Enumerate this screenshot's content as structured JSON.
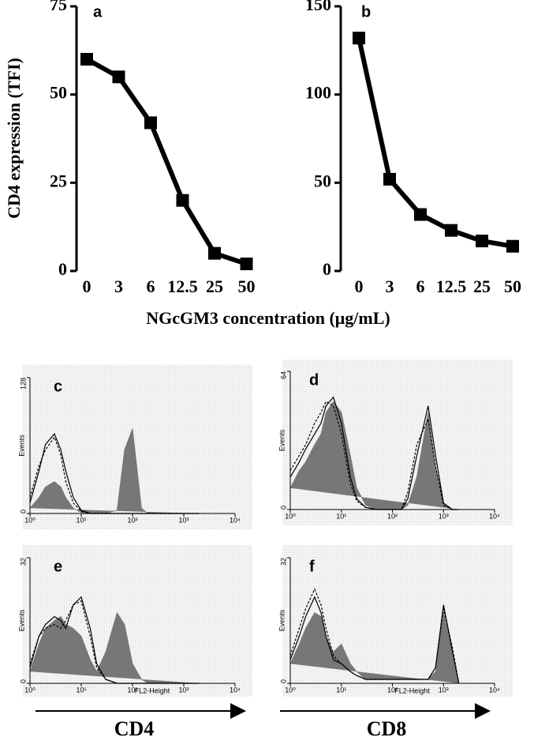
{
  "figure": {
    "y_label": "CD4 expression (TFI)",
    "x_label": "NGcGM3 concentration (μg/mL)",
    "arrow_labels": [
      "CD4",
      "CD8"
    ]
  },
  "chart_data": [
    {
      "type": "line",
      "label": "a",
      "categories": [
        "0",
        "3",
        "6",
        "12.5",
        "25",
        "50"
      ],
      "values": [
        60,
        55,
        42,
        20,
        5,
        2
      ],
      "color": "#000000",
      "ylim": [
        0,
        75
      ],
      "yticks": [
        0,
        25,
        50,
        75
      ]
    },
    {
      "type": "line",
      "label": "b",
      "categories": [
        "0",
        "3",
        "6",
        "12.5",
        "25",
        "50"
      ],
      "values": [
        132,
        52,
        32,
        23,
        17,
        14
      ],
      "color": "#000000",
      "ylim": [
        0,
        150
      ],
      "yticks": [
        0,
        50,
        100,
        150
      ]
    },
    {
      "type": "area",
      "label": "c",
      "y_label": "Events",
      "xscale": "log",
      "xlim": [
        1,
        10000
      ],
      "ylim": [
        0,
        128
      ],
      "xticks": [
        {
          "value": 1,
          "label": "10⁰"
        },
        {
          "value": 10,
          "label": "10¹"
        },
        {
          "value": 100,
          "label": "10²"
        },
        {
          "value": 1000,
          "label": "10³"
        },
        {
          "value": 10000,
          "label": "10⁴"
        }
      ],
      "yticks": [
        0,
        128
      ],
      "x": [
        1,
        1.5,
        2,
        3,
        4,
        5,
        7,
        10,
        15,
        20,
        30,
        50,
        70,
        100,
        150,
        200,
        300,
        500,
        700,
        1000,
        1500,
        2000
      ],
      "series": [
        {
          "style": "filled",
          "color": "#777777",
          "values": [
            5,
            15,
            25,
            30,
            25,
            15,
            5,
            1,
            0,
            0,
            0,
            3,
            60,
            80,
            5,
            0,
            0,
            0,
            0,
            0,
            0,
            0
          ]
        },
        {
          "style": "solid",
          "color": "#000000",
          "values": [
            10,
            40,
            65,
            75,
            60,
            40,
            15,
            3,
            0,
            0,
            0,
            0,
            0,
            0,
            0,
            0,
            0,
            0,
            0,
            0,
            0,
            0
          ]
        },
        {
          "style": "dashed",
          "color": "#000000",
          "values": [
            15,
            45,
            60,
            72,
            55,
            30,
            10,
            2,
            0,
            0,
            0,
            0,
            0,
            0,
            0,
            0,
            0,
            0,
            0,
            0,
            0,
            0
          ]
        }
      ]
    },
    {
      "type": "area",
      "label": "d",
      "y_label": "Events",
      "xscale": "log",
      "xlim": [
        1,
        10000
      ],
      "ylim": [
        0,
        64
      ],
      "xticks": [
        {
          "value": 1,
          "label": "10⁰"
        },
        {
          "value": 10,
          "label": "10¹"
        },
        {
          "value": 100,
          "label": "10²"
        },
        {
          "value": 1000,
          "label": "10³"
        },
        {
          "value": 10000,
          "label": "10⁴"
        }
      ],
      "yticks": [
        0,
        64
      ],
      "x": [
        1,
        1.5,
        2,
        3,
        4,
        5,
        7,
        10,
        15,
        20,
        30,
        50,
        70,
        100,
        150,
        200,
        300,
        500,
        700,
        1000,
        1500,
        2000
      ],
      "series": [
        {
          "style": "filled",
          "color": "#777777",
          "values": [
            10,
            18,
            22,
            30,
            35,
            45,
            50,
            45,
            25,
            10,
            2,
            0,
            0,
            0,
            0,
            2,
            15,
            45,
            20,
            3,
            0,
            0
          ]
        },
        {
          "style": "solid",
          "color": "#000000",
          "values": [
            15,
            22,
            28,
            35,
            40,
            48,
            52,
            40,
            15,
            5,
            1,
            0,
            0,
            0,
            0,
            5,
            25,
            48,
            25,
            3,
            0,
            0
          ]
        },
        {
          "style": "dashed",
          "color": "#000000",
          "values": [
            18,
            25,
            30,
            40,
            45,
            50,
            48,
            35,
            12,
            4,
            1,
            0,
            0,
            0,
            0,
            8,
            30,
            42,
            20,
            2,
            0,
            0
          ]
        }
      ]
    },
    {
      "type": "area",
      "label": "e",
      "y_label": "Events",
      "x_label": "FL2-Height",
      "xscale": "log",
      "xlim": [
        1,
        10000
      ],
      "ylim": [
        0,
        32
      ],
      "xticks": [
        {
          "value": 1,
          "label": "10⁰"
        },
        {
          "value": 10,
          "label": "10¹"
        },
        {
          "value": 100,
          "label": "10²"
        },
        {
          "value": 1000,
          "label": "10³"
        },
        {
          "value": 10000,
          "label": "10⁴"
        }
      ],
      "yticks": [
        0,
        32
      ],
      "x": [
        1,
        1.5,
        2,
        3,
        4,
        5,
        7,
        10,
        15,
        20,
        30,
        50,
        70,
        100,
        150,
        200,
        300,
        500,
        700,
        1000,
        1500,
        2000
      ],
      "series": [
        {
          "style": "filled",
          "color": "#777777",
          "values": [
            3,
            10,
            14,
            16,
            17,
            15,
            14,
            12,
            6,
            3,
            8,
            18,
            15,
            5,
            1,
            0,
            0,
            0,
            0,
            0,
            0,
            0
          ]
        },
        {
          "style": "solid",
          "color": "#000000",
          "values": [
            4,
            12,
            15,
            17,
            16,
            14,
            20,
            22,
            14,
            5,
            1,
            0,
            0,
            0,
            0,
            0,
            0,
            0,
            0,
            0,
            0,
            0
          ]
        },
        {
          "style": "dashed",
          "color": "#000000",
          "values": [
            5,
            12,
            14,
            15,
            14,
            16,
            20,
            21,
            12,
            4,
            1,
            0,
            0,
            0,
            0,
            0,
            0,
            0,
            0,
            0,
            0,
            0
          ]
        }
      ]
    },
    {
      "type": "area",
      "label": "f",
      "y_label": "Events",
      "x_label": "FL2-Height",
      "xscale": "log",
      "xlim": [
        1,
        10000
      ],
      "ylim": [
        0,
        32
      ],
      "xticks": [
        {
          "value": 1,
          "label": "10⁰"
        },
        {
          "value": 10,
          "label": "10¹"
        },
        {
          "value": 100,
          "label": "10²"
        },
        {
          "value": 1000,
          "label": "10³"
        },
        {
          "value": 10000,
          "label": "10⁴"
        }
      ],
      "yticks": [
        0,
        32
      ],
      "x": [
        1,
        1.5,
        2,
        3,
        4,
        5,
        7,
        10,
        15,
        20,
        30,
        50,
        70,
        100,
        150,
        200,
        300,
        500,
        700,
        1000,
        1500,
        2000
      ],
      "series": [
        {
          "style": "filled",
          "color": "#777777",
          "values": [
            5,
            10,
            14,
            18,
            17,
            12,
            8,
            10,
            5,
            3,
            1,
            1,
            1,
            1,
            1,
            1,
            1,
            1,
            3,
            18,
            8,
            0
          ]
        },
        {
          "style": "solid",
          "color": "#000000",
          "values": [
            6,
            12,
            17,
            22,
            18,
            12,
            6,
            5,
            3,
            2,
            1,
            1,
            1,
            1,
            1,
            1,
            1,
            1,
            4,
            20,
            8,
            0
          ]
        },
        {
          "style": "dashed",
          "color": "#000000",
          "values": [
            7,
            14,
            19,
            24,
            20,
            14,
            7,
            5,
            3,
            2,
            1,
            1,
            1,
            1,
            1,
            1,
            1,
            1,
            4,
            19,
            9,
            0
          ]
        }
      ]
    }
  ]
}
